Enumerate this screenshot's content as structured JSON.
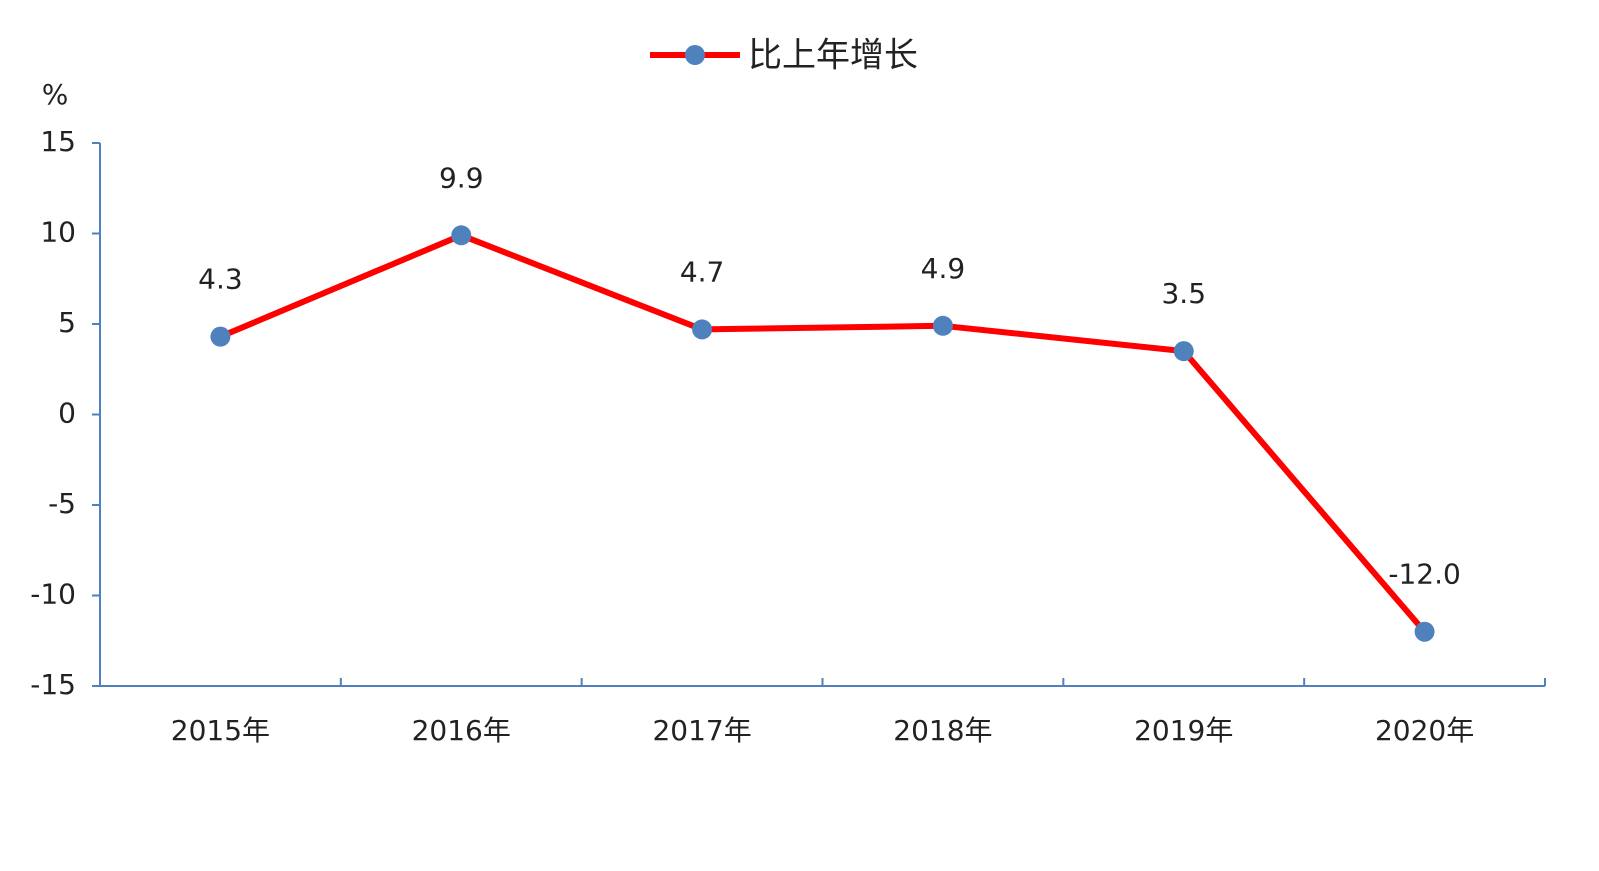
{
  "chart_data": {
    "type": "line",
    "y_label": "%",
    "categories": [
      "2015年",
      "2016年",
      "2017年",
      "2018年",
      "2019年",
      "2020年"
    ],
    "series": [
      {
        "name": "比上年增长",
        "color": "#ff0000",
        "marker_color": "#4f81bd",
        "values": [
          4.3,
          9.9,
          4.7,
          4.9,
          3.5,
          -12.0
        ],
        "value_labels": [
          "4.3",
          "9.9",
          "4.7",
          "4.9",
          "3.5",
          "-12.0"
        ]
      }
    ],
    "ylim": [
      -15,
      15
    ],
    "yticks": [
      15,
      10,
      5,
      0,
      -5,
      -10,
      -15
    ],
    "grid": false,
    "legend": "top"
  }
}
